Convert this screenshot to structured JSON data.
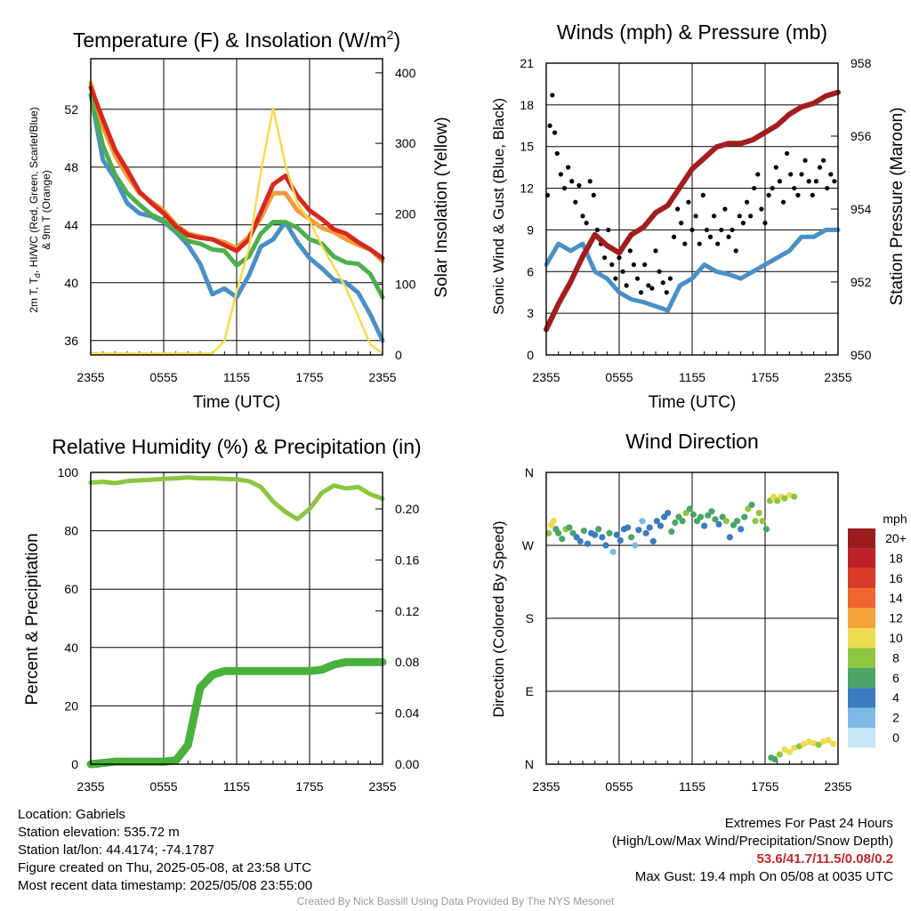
{
  "chart_data": [
    {
      "type": "line",
      "title": "Temperature (F) & Insolation (W/m",
      "title_sup": "2",
      "title_end": ")",
      "xlabel": "Time (UTC)",
      "ylabel_lines": [
        "2m T, T",
        "d",
        ", HI/WC (Red, Green, Scarlet/Blue)",
        "& 9m T (Orange)"
      ],
      "ylabel_right": "Solar Insolation (Yellow)",
      "x_ticks": [
        "2355",
        "0555",
        "1155",
        "1755",
        "2355"
      ],
      "ylim": [
        35,
        55.5
      ],
      "y_ticks": [
        "36",
        "40",
        "44",
        "48",
        "52"
      ],
      "y_tick_values": [
        36,
        40,
        44,
        48,
        52
      ],
      "y2lim": [
        0,
        420
      ],
      "y2_ticks": [
        "0",
        "100",
        "200",
        "300",
        "400"
      ],
      "y2_tick_values": [
        0,
        100,
        200,
        300,
        400
      ],
      "grid": true,
      "x_hours": [
        0,
        1,
        2,
        3,
        4,
        5,
        6,
        7,
        8,
        9,
        10,
        11,
        12,
        13,
        14,
        15,
        16,
        17,
        18,
        19,
        20,
        21,
        22,
        23,
        24
      ],
      "series": [
        {
          "color": "#4a8fc6",
          "axis": "left",
          "values": [
            53.0,
            48.5,
            47.2,
            45.5,
            44.8,
            44.6,
            44.2,
            43.5,
            42.6,
            41.3,
            39.2,
            39.6,
            39.0,
            40.5,
            42.5,
            43.0,
            44.2,
            42.8,
            41.7,
            41.0,
            40.2,
            40.0,
            39.3,
            37.8,
            36.0
          ]
        },
        {
          "color": "#4cb04a",
          "axis": "left",
          "values": [
            53.0,
            49.5,
            47.5,
            46.2,
            45.4,
            44.7,
            44.3,
            43.6,
            42.9,
            42.7,
            42.3,
            42.2,
            41.2,
            41.8,
            43.4,
            44.2,
            44.2,
            43.8,
            43.0,
            42.7,
            41.8,
            41.4,
            41.3,
            40.6,
            39.0
          ]
        },
        {
          "color": "#f39a3a",
          "axis": "left",
          "values": [
            53.8,
            50.8,
            48.8,
            47.4,
            46.2,
            45.6,
            45.0,
            44.0,
            43.4,
            43.2,
            43.0,
            42.8,
            42.4,
            43.2,
            44.5,
            46.2,
            46.2,
            45.0,
            44.4,
            43.8,
            43.5,
            43.0,
            42.6,
            42.3,
            41.5
          ]
        },
        {
          "color": "#d7281f",
          "axis": "left",
          "values": [
            53.5,
            51.3,
            49.2,
            47.8,
            46.3,
            45.5,
            44.8,
            43.9,
            43.3,
            43.1,
            43.0,
            42.6,
            42.2,
            43.0,
            44.9,
            46.8,
            47.4,
            46.0,
            45.0,
            44.4,
            43.7,
            43.4,
            42.8,
            42.3,
            41.7
          ]
        },
        {
          "color": "#fad94c",
          "axis": "right",
          "values": [
            3,
            2,
            2,
            2,
            2,
            2,
            2,
            2,
            2,
            2,
            2,
            20,
            90,
            150,
            260,
            350,
            270,
            215,
            190,
            155,
            125,
            95,
            55,
            15,
            2
          ]
        }
      ]
    },
    {
      "type": "scatter",
      "title": "Winds (mph) & Pressure (mb)",
      "xlabel": "Time (UTC)",
      "ylabel": "Sonic Wind & Gust (Blue, Black)",
      "ylabel_right": "Station Pressure (Maroon)",
      "x_ticks": [
        "2355",
        "0555",
        "1155",
        "1755",
        "2355"
      ],
      "ylim": [
        0,
        21
      ],
      "y_ticks": [
        "0",
        "3",
        "6",
        "9",
        "12",
        "15",
        "18",
        "21"
      ],
      "y_tick_values": [
        0,
        3,
        6,
        9,
        12,
        15,
        18,
        21
      ],
      "y2lim": [
        950,
        958
      ],
      "y2_ticks": [
        "950",
        "952",
        "954",
        "956",
        "958"
      ],
      "y2_tick_values": [
        950,
        952,
        954,
        956,
        958
      ],
      "grid": true,
      "wind": {
        "color": "#4a8fc6",
        "x": [
          0,
          1,
          2,
          3,
          4,
          5,
          6,
          7,
          8,
          9,
          10,
          11,
          12,
          13,
          14,
          15,
          16,
          17,
          18,
          19,
          20,
          21,
          22,
          23,
          24
        ],
        "values": [
          6.5,
          8.0,
          7.5,
          8.0,
          6.0,
          5.5,
          4.5,
          4.0,
          3.8,
          3.5,
          3.2,
          5.0,
          5.5,
          6.5,
          6.0,
          5.8,
          5.5,
          6.0,
          6.5,
          7.0,
          7.5,
          8.5,
          8.5,
          9.0,
          9.0
        ]
      },
      "gust": {
        "color": "#000000",
        "x": [
          0.1,
          0.3,
          0.5,
          0.7,
          0.9,
          1.2,
          1.5,
          1.8,
          2.1,
          2.4,
          2.7,
          3.0,
          3.3,
          3.6,
          3.9,
          4.2,
          4.5,
          4.8,
          5.1,
          5.4,
          5.7,
          6.0,
          6.3,
          6.6,
          6.9,
          7.2,
          7.5,
          7.8,
          8.1,
          8.4,
          8.7,
          9.0,
          9.3,
          9.6,
          9.9,
          10.2,
          10.5,
          10.8,
          11.1,
          11.4,
          11.7,
          12.0,
          12.3,
          12.6,
          12.9,
          13.2,
          13.5,
          13.8,
          14.1,
          14.4,
          14.7,
          15.0,
          15.3,
          15.6,
          15.9,
          16.2,
          16.5,
          16.8,
          17.1,
          17.4,
          17.7,
          18.0,
          18.3,
          18.6,
          18.9,
          19.2,
          19.5,
          19.8,
          20.1,
          20.4,
          20.7,
          21.0,
          21.3,
          21.6,
          21.9,
          22.2,
          22.5,
          22.8,
          23.1,
          23.4,
          23.7
        ],
        "values": [
          11.5,
          16.5,
          18.7,
          16.0,
          14.5,
          13.0,
          12.0,
          13.5,
          12.5,
          11.0,
          12.2,
          10.0,
          9.5,
          12.5,
          11.5,
          9.0,
          8.0,
          7.0,
          9.0,
          6.5,
          5.5,
          7.0,
          6.0,
          5.0,
          7.5,
          6.5,
          5.5,
          4.5,
          6.5,
          5.0,
          4.8,
          7.5,
          6.0,
          5.2,
          4.5,
          5.5,
          8.5,
          10.5,
          9.5,
          8.0,
          11.0,
          9.0,
          10.0,
          8.0,
          11.5,
          9.0,
          8.5,
          10.0,
          8.0,
          9.0,
          10.5,
          8.5,
          9.0,
          7.5,
          10.0,
          9.5,
          11.0,
          10.0,
          12.0,
          13.0,
          10.5,
          9.5,
          11.5,
          12.0,
          13.5,
          12.5,
          11.0,
          14.5,
          13.0,
          12.0,
          11.5,
          13.0,
          14.0,
          12.5,
          11.5,
          12.5,
          13.5,
          14.0,
          12.0,
          13.0,
          12.5
        ]
      },
      "pressure": {
        "color": "#a31d1d",
        "x": [
          0,
          1,
          2,
          3,
          4,
          5,
          6,
          7,
          8,
          9,
          10,
          11,
          12,
          13,
          14,
          15,
          16,
          17,
          18,
          19,
          20,
          21,
          22,
          23,
          24
        ],
        "values": [
          950.7,
          951.4,
          952.0,
          952.7,
          953.3,
          953.0,
          952.8,
          953.3,
          953.5,
          953.9,
          954.1,
          954.6,
          955.1,
          955.4,
          955.7,
          955.8,
          955.8,
          955.9,
          956.1,
          956.3,
          956.6,
          956.8,
          956.9,
          957.1,
          957.2
        ]
      }
    },
    {
      "type": "line",
      "title": "Relative Humidity (%) & Precipitation (in)",
      "ylabel": "Percent & Precipitation",
      "x_ticks": [
        "2355",
        "0555",
        "1155",
        "1755",
        "2355"
      ],
      "ylim": [
        0,
        100
      ],
      "y_ticks": [
        "0",
        "20",
        "40",
        "60",
        "80",
        "100"
      ],
      "y_tick_values": [
        0,
        20,
        40,
        60,
        80,
        100
      ],
      "y2lim": [
        0,
        0.2286
      ],
      "y2_ticks": [
        "0.00",
        "0.04",
        "0.08",
        "0.12",
        "0.16",
        "0.20"
      ],
      "y2_tick_values": [
        0,
        0.04,
        0.08,
        0.12,
        0.16,
        0.2
      ],
      "grid": true,
      "x_hours": [
        0,
        1,
        2,
        3,
        4,
        5,
        6,
        7,
        8,
        9,
        10,
        11,
        12,
        13,
        14,
        15,
        16,
        17,
        18,
        19,
        20,
        21,
        22,
        23,
        24
      ],
      "series": [
        {
          "color": "#8cc63f",
          "axis": "left",
          "values": [
            96.5,
            96.8,
            96.3,
            97.0,
            97.3,
            97.5,
            97.8,
            98.0,
            98.3,
            98.0,
            98.0,
            97.8,
            97.6,
            97.0,
            95.0,
            90.0,
            86.5,
            84.0,
            87.5,
            93.0,
            95.5,
            94.5,
            95.0,
            92.5,
            91.0
          ]
        },
        {
          "color": "#48b13c",
          "axis": "right",
          "values": [
            0.0,
            0.001,
            0.002,
            0.002,
            0.002,
            0.002,
            0.002,
            0.003,
            0.015,
            0.06,
            0.07,
            0.073,
            0.073,
            0.073,
            0.073,
            0.073,
            0.073,
            0.073,
            0.073,
            0.074,
            0.078,
            0.08,
            0.08,
            0.08,
            0.08
          ]
        }
      ]
    },
    {
      "type": "scatter",
      "title": "Wind Direction",
      "ylabel": "Direction (Colored By Speed)",
      "x_ticks": [
        "2355",
        "0555",
        "1155",
        "1755",
        "2355"
      ],
      "y_ticks": [
        "N",
        "E",
        "S",
        "W",
        "N"
      ],
      "y_tick_values": [
        0,
        90,
        180,
        270,
        360
      ],
      "ylim": [
        0,
        360
      ],
      "grid": true,
      "colorbar": {
        "title": "mph",
        "labels": [
          "20+",
          "18",
          "16",
          "14",
          "12",
          "10",
          "8",
          "6",
          "4",
          "2",
          "0"
        ],
        "colors": [
          "#9b1d1d",
          "#bf2126",
          "#d73a27",
          "#f0662e",
          "#f7a33c",
          "#eedb50",
          "#8dc63f",
          "#4aa566",
          "#3b7bbf",
          "#7db9e5",
          "#c6e6f8"
        ]
      },
      "points": {
        "x": [
          0.2,
          0.4,
          0.6,
          0.8,
          1.0,
          1.3,
          1.6,
          1.9,
          2.2,
          2.5,
          2.8,
          3.1,
          3.4,
          3.7,
          4.0,
          4.3,
          4.6,
          4.9,
          5.2,
          5.5,
          5.8,
          6.1,
          6.4,
          6.7,
          7.0,
          7.3,
          7.6,
          7.9,
          8.2,
          8.5,
          8.8,
          9.1,
          9.4,
          9.7,
          10.0,
          10.3,
          10.6,
          10.9,
          11.2,
          11.5,
          11.8,
          12.1,
          12.4,
          12.7,
          13.0,
          13.3,
          13.6,
          13.9,
          14.2,
          14.5,
          14.8,
          15.1,
          15.4,
          15.7,
          16.0,
          16.3,
          16.6,
          16.9,
          17.2,
          17.5,
          17.8,
          18.1,
          18.4,
          18.7,
          19.0,
          19.3,
          19.6,
          20.0,
          20.4,
          18.5,
          18.8,
          19.2,
          19.6,
          20.0,
          20.4,
          20.8,
          21.2,
          21.6,
          22.0,
          22.4,
          22.8,
          23.2,
          23.6
        ],
        "y": [
          285,
          295,
          300,
          290,
          285,
          278,
          290,
          292,
          285,
          280,
          275,
          288,
          272,
          285,
          283,
          290,
          280,
          270,
          285,
          262,
          283,
          276,
          290,
          292,
          280,
          270,
          289,
          300,
          285,
          292,
          275,
          300,
          294,
          305,
          310,
          287,
          298,
          305,
          300,
          310,
          315,
          308,
          300,
          305,
          294,
          307,
          312,
          302,
          296,
          305,
          300,
          280,
          295,
          300,
          290,
          305,
          315,
          320,
          300,
          310,
          300,
          290,
          325,
          330,
          325,
          330,
          328,
          332,
          330,
          8,
          6,
          12,
          18,
          15,
          20,
          22,
          25,
          28,
          26,
          24,
          28,
          30,
          25
        ],
        "mph": [
          7,
          9,
          10,
          5,
          6,
          5,
          7,
          6,
          5,
          4,
          3,
          6,
          3,
          4,
          4,
          5,
          4,
          3,
          5,
          2,
          4,
          3,
          4,
          3,
          5,
          2,
          3,
          2,
          3,
          4,
          3,
          4,
          3,
          3,
          4,
          6,
          5,
          6,
          5,
          7,
          6,
          6,
          5,
          5,
          4,
          6,
          5,
          5,
          4,
          6,
          7,
          3,
          6,
          5,
          4,
          6,
          7,
          6,
          8,
          8,
          7,
          6,
          8,
          9,
          7,
          9,
          8,
          9,
          8,
          6,
          6,
          7,
          9,
          10,
          9,
          8,
          10,
          9,
          10,
          8,
          10,
          9,
          10
        ]
      }
    }
  ],
  "info_left": [
    "Location: Gabriels",
    "Station elevation: 535.72 m",
    "Station lat/lon: 44.4174; -74.1787",
    "Figure created on Thu, 2025-05-08, at 23:58 UTC",
    "Most recent data timestamp: 2025/05/08 23:55:00"
  ],
  "info_right": {
    "title": "Extremes For Past 24 Hours",
    "subtitle": "(High/Low/Max Wind/Precipitation/Snow Depth)",
    "values": "53.6/41.7/11.5/0.08/0.2",
    "gust": "Max Gust: 19.4 mph On 05/08 at 0035 UTC"
  },
  "credit": "Created By Nick Bassill Using Data Provided By The NYS Mesonet",
  "colors": {
    "extremes": "#c0282e",
    "credit": "#9a9a9a",
    "grid": "#000000"
  }
}
